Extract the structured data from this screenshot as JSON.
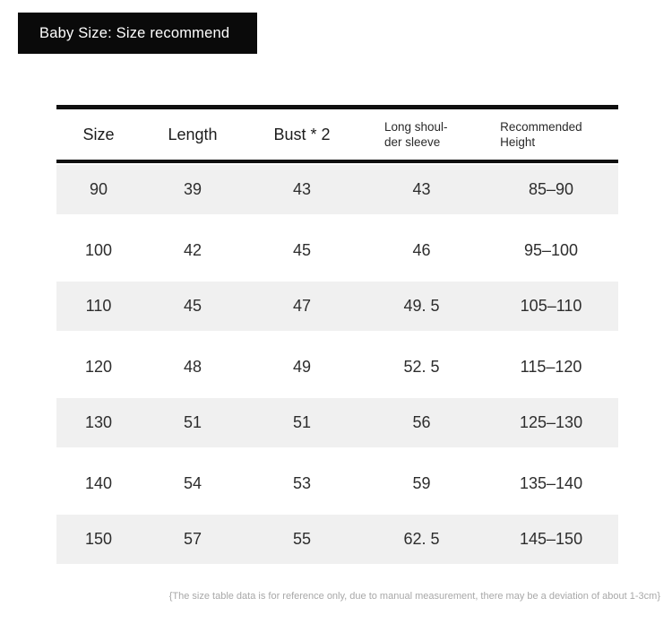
{
  "banner": {
    "title": "Baby Size: Size recommend"
  },
  "table": {
    "columns": [
      {
        "line1": "Size",
        "line2": ""
      },
      {
        "line1": "Length",
        "line2": ""
      },
      {
        "line1": "Bust * 2",
        "line2": ""
      },
      {
        "line1": "Long shoul-",
        "line2": "der sleeve"
      },
      {
        "line1": "Recommended",
        "line2": "Height"
      }
    ],
    "rows": [
      [
        "90",
        "39",
        "43",
        "43",
        "85–90"
      ],
      [
        "100",
        "42",
        "45",
        "46",
        "95–100"
      ],
      [
        "110",
        "45",
        "47",
        "49. 5",
        "105–110"
      ],
      [
        "120",
        "48",
        "49",
        "52. 5",
        "115–120"
      ],
      [
        "130",
        "51",
        "51",
        "56",
        "125–130"
      ],
      [
        "140",
        "54",
        "53",
        "59",
        "135–140"
      ],
      [
        "150",
        "57",
        "55",
        "62. 5",
        "145–150"
      ]
    ]
  },
  "footer": {
    "note": "{The size table data is for reference only, due to manual measurement, there may be a deviation of about 1-3cm}"
  },
  "colors": {
    "banner_bg": "#0a0a0a",
    "banner_text": "#ffffff",
    "row_stripe": "#f0f0f0",
    "table_border": "#101010",
    "data_text": "#2d2d2d",
    "footnote_text": "#a8a8a8"
  }
}
